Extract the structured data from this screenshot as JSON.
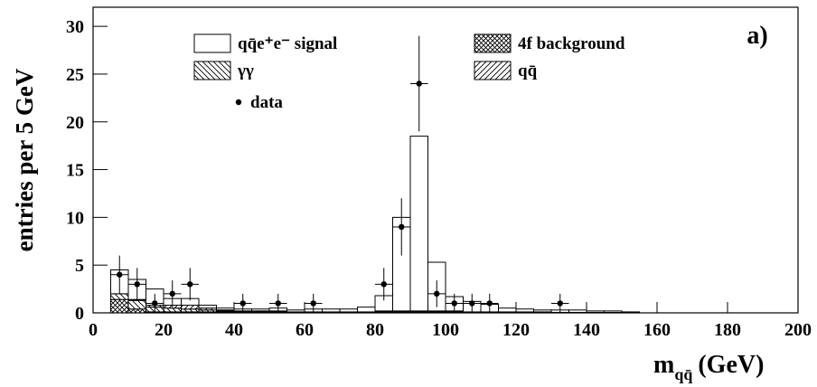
{
  "chart_data": {
    "type": "stacked-histogram",
    "y_label": "entries per 5 GeV",
    "x_label": {
      "main": "m",
      "sub": "qq̄",
      "unit": "(GeV)"
    },
    "panel_label": "a)",
    "xlim": [
      0,
      200
    ],
    "ylim": [
      0,
      32
    ],
    "xticks": [
      0,
      20,
      40,
      60,
      80,
      100,
      120,
      140,
      160,
      180,
      200
    ],
    "yticks": [
      0,
      5,
      10,
      15,
      20,
      25,
      30
    ],
    "bins": [
      5,
      10,
      15,
      20,
      25,
      30,
      35,
      40,
      45,
      50,
      55,
      60,
      65,
      70,
      75,
      80,
      85,
      90,
      95,
      100,
      105,
      110,
      115,
      120,
      125,
      130,
      135,
      140,
      145,
      150,
      155
    ],
    "series": [
      {
        "name": "4f background",
        "pattern": "crosshatch",
        "values": [
          1.4,
          0.4,
          0.1,
          0.1,
          0.1,
          0.1,
          0.1,
          0.1,
          0.1,
          0.1,
          0.1,
          0.1,
          0.1,
          0.1,
          0.1,
          0.1,
          0.1,
          0.1,
          0.1,
          0.1,
          0.1,
          0.1,
          0.1,
          0.1,
          0.1,
          0.05,
          0.05,
          0.05,
          0.05,
          0.05
        ]
      },
      {
        "name": "γγ",
        "pattern": "back-diagonal",
        "values": [
          0.6,
          0.9,
          0.5,
          0.4,
          0.3,
          0.2,
          0.1,
          0,
          0,
          0,
          0,
          0,
          0,
          0,
          0,
          0,
          0,
          0,
          0,
          0,
          0,
          0,
          0,
          0,
          0,
          0,
          0,
          0,
          0,
          0
        ]
      },
      {
        "name": "qq̄",
        "pattern": "diagonal",
        "values": [
          0,
          0.1,
          0.2,
          0.3,
          0.4,
          0.2,
          0.1,
          0.1,
          0.1,
          0.1,
          0,
          0,
          0,
          0,
          0,
          0.1,
          0.1,
          0.1,
          0.1,
          0.1,
          0,
          0,
          0,
          0,
          0,
          0,
          0,
          0,
          0,
          0
        ]
      },
      {
        "name": "qq̄e⁺e⁻ signal",
        "pattern": "none",
        "values": [
          2.5,
          2.1,
          1.7,
          0.7,
          0.7,
          0.3,
          0.2,
          0.2,
          0.2,
          0.3,
          0.2,
          0.3,
          0.3,
          0.3,
          0.5,
          1.6,
          9.8,
          18.3,
          5.1,
          1.5,
          1.1,
          0.8,
          0.4,
          0.3,
          0.2,
          0.25,
          0.25,
          0.15,
          0.15,
          0.05
        ]
      }
    ],
    "data": {
      "name": "data",
      "x": [
        7.5,
        12.5,
        17.5,
        22.5,
        27.5,
        42.5,
        52.5,
        62.5,
        82.5,
        87.5,
        92.5,
        97.5,
        102.5,
        107.5,
        112.5,
        132.5
      ],
      "y": [
        4,
        3,
        1,
        2,
        3,
        1,
        1,
        1,
        3,
        9,
        24,
        2,
        1,
        1,
        1,
        1
      ],
      "yerr": [
        2,
        1.7,
        1,
        1.4,
        1.7,
        1,
        1,
        1,
        1.7,
        3,
        5,
        1.4,
        1,
        1,
        1,
        1
      ],
      "xerr": 2.5
    }
  }
}
